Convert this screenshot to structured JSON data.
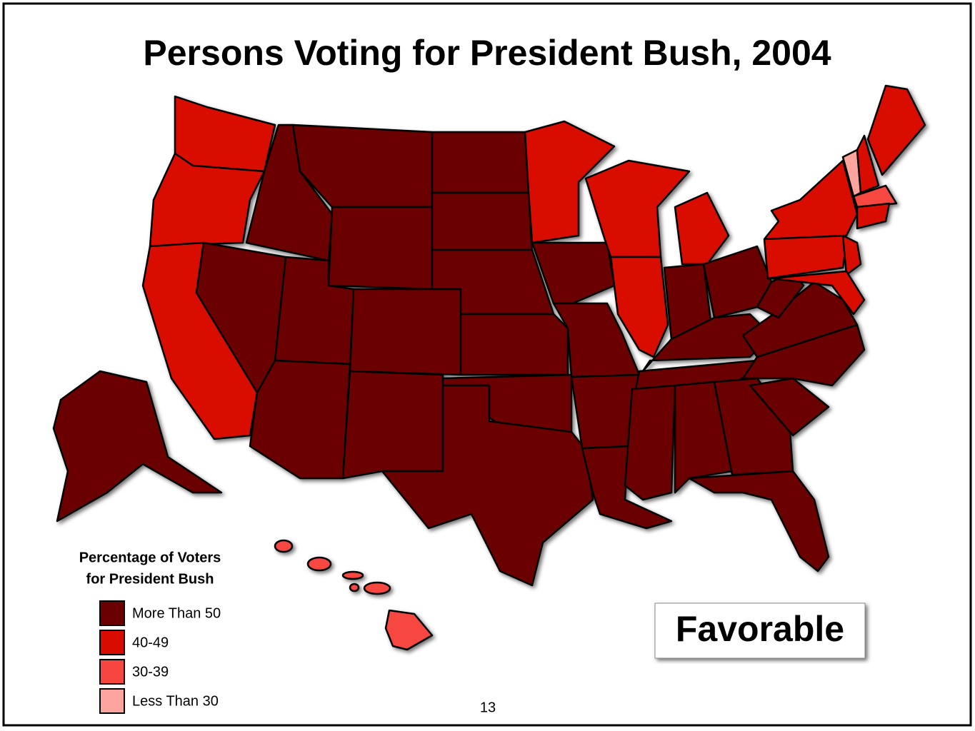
{
  "title": "Persons Voting for President Bush, 2004",
  "legend": {
    "title": [
      "Percentage of Voters",
      "for President Bush"
    ],
    "items": [
      {
        "label": "More Than 50",
        "color": "#6b0000"
      },
      {
        "label": "40-49",
        "color": "#d80c00"
      },
      {
        "label": "30-39",
        "color": "#f6463f"
      },
      {
        "label": "Less Than 30",
        "color": "#fda49f"
      }
    ]
  },
  "badge": "Favorable",
  "page_number": "13"
}
